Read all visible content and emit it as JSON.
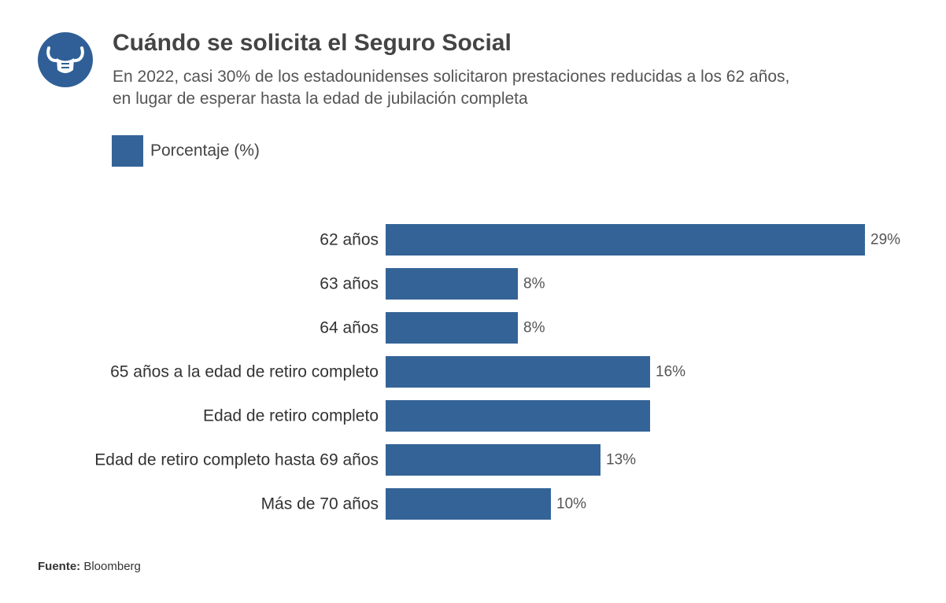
{
  "header": {
    "title": "Cuándo se solicita el Seguro Social",
    "subtitle_line1": "En 2022, casi 30% de los estadounidenses solicitaron prestaciones reducidas a los 62 años,",
    "subtitle_line2": "en lugar de esperar hasta la edad de jubilación completa"
  },
  "logo": {
    "icon": "bull-fist-icon",
    "color": "#2f5f96"
  },
  "footer": {
    "source_label": "Fuente:",
    "source_value": "Bloomberg"
  },
  "colors": {
    "bar": "#346397"
  },
  "chart_data": {
    "type": "bar",
    "orientation": "horizontal",
    "title": "Cuándo se solicita el Seguro Social",
    "legend": {
      "label": "Porcentaje (%)",
      "placement": "top-left"
    },
    "categories": [
      "62 años",
      "63 años",
      "64 años",
      "65 años a la edad de retiro completo",
      "Edad de retiro completo",
      "Edad de retiro completo hasta 69 años",
      "Más de 70 años"
    ],
    "values": [
      29,
      8,
      8,
      16,
      16,
      13,
      10
    ],
    "value_labels": [
      "29%",
      "8%",
      "8%",
      "16%",
      "",
      "13%",
      "10%"
    ],
    "xlim": [
      0,
      29
    ],
    "grid": false
  }
}
